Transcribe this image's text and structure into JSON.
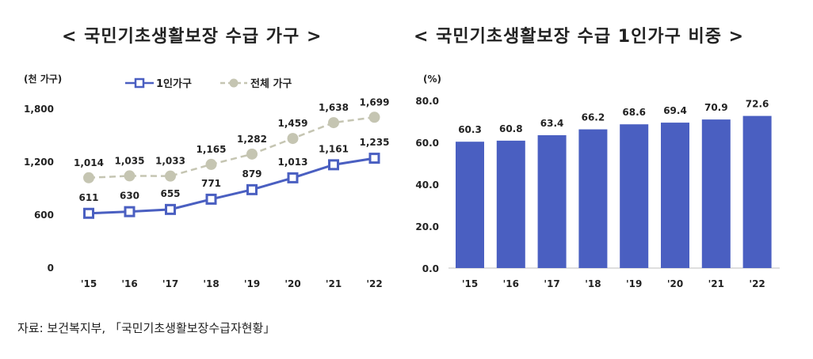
{
  "source": "자료: 보건복지부, 「국민기초생활보장수급자현황」",
  "chart_data": [
    {
      "type": "line",
      "title": "< 국민기초생활보장 수급 가구 >",
      "ylabel": "(천 가구)",
      "xlabel": "",
      "ylim": [
        0,
        1800
      ],
      "yticks": [
        0,
        600,
        1200,
        1800
      ],
      "ytick_labels": [
        "0",
        "600",
        "1,200",
        "1,800"
      ],
      "categories": [
        "'15",
        "'16",
        "'17",
        "'18",
        "'19",
        "'20",
        "'21",
        "'22"
      ],
      "legend_position": "top",
      "grid": false,
      "series": [
        {
          "name": "1인가구",
          "values": [
            611,
            630,
            655,
            771,
            879,
            1013,
            1161,
            1235
          ],
          "labels": [
            "611",
            "630",
            "655",
            "771",
            "879",
            "1,013",
            "1,161",
            "1,235"
          ],
          "color": "#4a5fc1",
          "style": "solid"
        },
        {
          "name": "전체 가구",
          "values": [
            1014,
            1035,
            1033,
            1165,
            1282,
            1459,
            1638,
            1699
          ],
          "labels": [
            "1,014",
            "1,035",
            "1,033",
            "1,165",
            "1,282",
            "1,459",
            "1,638",
            "1,699"
          ],
          "color": "#c5c5b2",
          "style": "dashed"
        }
      ]
    },
    {
      "type": "bar",
      "title": "< 국민기초생활보장 수급 1인가구 비중 >",
      "ylabel": "(%)",
      "xlabel": "",
      "ylim": [
        0,
        80
      ],
      "yticks": [
        0,
        20,
        40,
        60,
        80
      ],
      "ytick_labels": [
        "0.0",
        "20.0",
        "40.0",
        "60.0",
        "80.0"
      ],
      "categories": [
        "'15",
        "'16",
        "'17",
        "'18",
        "'19",
        "'20",
        "'21",
        "'22"
      ],
      "values": [
        60.3,
        60.8,
        63.4,
        66.2,
        68.6,
        69.4,
        70.9,
        72.6
      ],
      "labels": [
        "60.3",
        "60.8",
        "63.4",
        "66.2",
        "68.6",
        "69.4",
        "70.9",
        "72.6"
      ],
      "color": "#4a5fc1",
      "grid": false
    }
  ]
}
